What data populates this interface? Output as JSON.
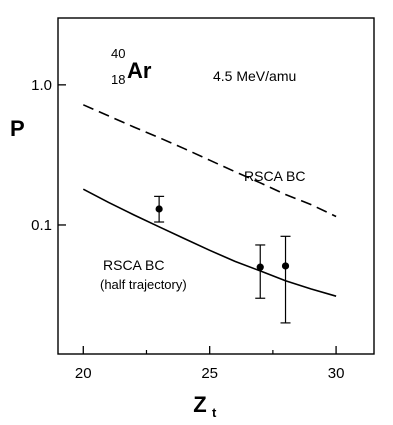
{
  "chart_data": {
    "type": "line",
    "title": "",
    "xlabel": "Z",
    "xlabel_sub": "t",
    "ylabel": "P",
    "x_scale": "linear",
    "y_scale": "log",
    "xlim": [
      19,
      31.5
    ],
    "ylim": [
      0.012,
      3.0
    ],
    "x_ticks": [
      20,
      25,
      30
    ],
    "x_tick_labels": [
      "20",
      "25",
      "30"
    ],
    "y_ticks": [
      0.1,
      1.0
    ],
    "y_tick_labels": [
      "0.1",
      "1.0"
    ],
    "grid": false,
    "nucleus": {
      "mass": "40",
      "charge": "18",
      "symbol": "Ar"
    },
    "energy_label": "4.5 MeV/amu",
    "series": [
      {
        "name": "RSCA BC",
        "style": "dashed",
        "x": [
          20,
          21,
          22,
          23,
          24,
          25,
          26,
          27,
          28,
          29,
          30
        ],
        "y": [
          0.72,
          0.6,
          0.5,
          0.42,
          0.35,
          0.29,
          0.24,
          0.2,
          0.165,
          0.14,
          0.115
        ]
      },
      {
        "name": "RSCA BC",
        "name_line2": "(half trajectory)",
        "style": "solid",
        "x": [
          20,
          21,
          22,
          23,
          24,
          25,
          26,
          27,
          28,
          29,
          30
        ],
        "y": [
          0.18,
          0.145,
          0.118,
          0.097,
          0.08,
          0.066,
          0.055,
          0.047,
          0.04,
          0.035,
          0.031
        ]
      }
    ],
    "points": [
      {
        "x": 23,
        "y": 0.13,
        "y_low": 0.105,
        "y_high": 0.16
      },
      {
        "x": 27,
        "y": 0.05,
        "y_low": 0.03,
        "y_high": 0.072
      },
      {
        "x": 28,
        "y": 0.051,
        "y_low": 0.02,
        "y_high": 0.083
      }
    ],
    "colors": {
      "ink": "#000000",
      "background": "#ffffff"
    }
  }
}
